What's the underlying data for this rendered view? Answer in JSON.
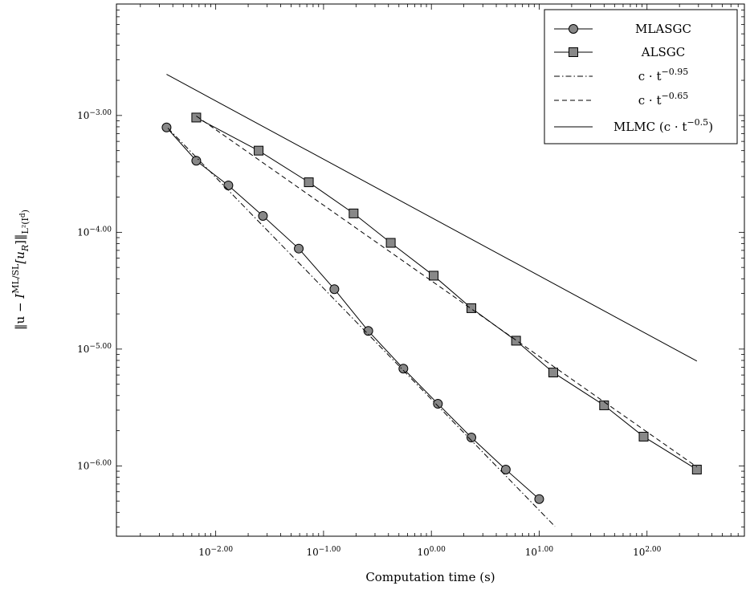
{
  "chart_data": {
    "type": "line",
    "xlabel": "Computation time (s)",
    "ylabel": "‖u − I^{ML/SL}[u_R]‖_{L²(I^d)}",
    "x_scale": "log",
    "y_scale": "log",
    "xlim": [
      0.0012,
      800
    ],
    "ylim": [
      2.5e-07,
      0.009
    ],
    "x_ticks": [
      {
        "value": 0.01,
        "label": "10^{-2.00}"
      },
      {
        "value": 0.1,
        "label": "10^{-1.00}"
      },
      {
        "value": 1,
        "label": "10^{0.00}"
      },
      {
        "value": 10,
        "label": "10^{1.00}"
      },
      {
        "value": 100,
        "label": "10^{2.00}"
      }
    ],
    "y_ticks": [
      {
        "value": 0.001,
        "label": "10^{-3.00}"
      },
      {
        "value": 0.0001,
        "label": "10^{-4.00}"
      },
      {
        "value": 1e-05,
        "label": "10^{-5.00}"
      },
      {
        "value": 1e-06,
        "label": "10^{-6.00}"
      }
    ],
    "grid": false,
    "legend_position": "top-right",
    "series": [
      {
        "name": "MLASGC",
        "marker": "circle",
        "line": "solid",
        "x": [
          0.0035,
          0.0066,
          0.0131,
          0.0274,
          0.0589,
          0.126,
          0.26,
          0.55,
          1.15,
          2.35,
          4.9,
          10.0
        ],
        "y": [
          0.00079,
          0.00041,
          0.000252,
          0.000138,
          7.25e-05,
          3.26e-05,
          1.43e-05,
          6.8e-06,
          3.4e-06,
          1.75e-06,
          9.3e-07,
          5.2e-07
        ]
      },
      {
        "name": "ALSGC",
        "marker": "square",
        "line": "solid",
        "x": [
          0.0066,
          0.025,
          0.073,
          0.19,
          0.42,
          1.05,
          2.35,
          6.1,
          13.5,
          40.0,
          93.0,
          290.0
        ],
        "y": [
          0.00096,
          0.0005,
          0.000268,
          0.000145,
          8.12e-05,
          4.25e-05,
          2.24e-05,
          1.18e-05,
          6.3e-06,
          3.3e-06,
          1.78e-06,
          9.3e-07
        ]
      },
      {
        "name": "c · t^{−0.95}",
        "marker": "none",
        "line": "dashdot",
        "x": [
          0.0036,
          14.0
        ],
        "y": [
          0.00078,
          3.03e-07
        ]
      },
      {
        "name": "c · t^{−0.65}",
        "marker": "none",
        "line": "dashed",
        "x": [
          0.0066,
          290.0
        ],
        "y": [
          0.00099,
          9.8e-07
        ]
      },
      {
        "name": "MLMC (c · t^{−0.5})",
        "marker": "none",
        "line": "solid",
        "x": [
          0.0035,
          290.0
        ],
        "y": [
          0.00225,
          7.9e-06
        ]
      }
    ]
  }
}
